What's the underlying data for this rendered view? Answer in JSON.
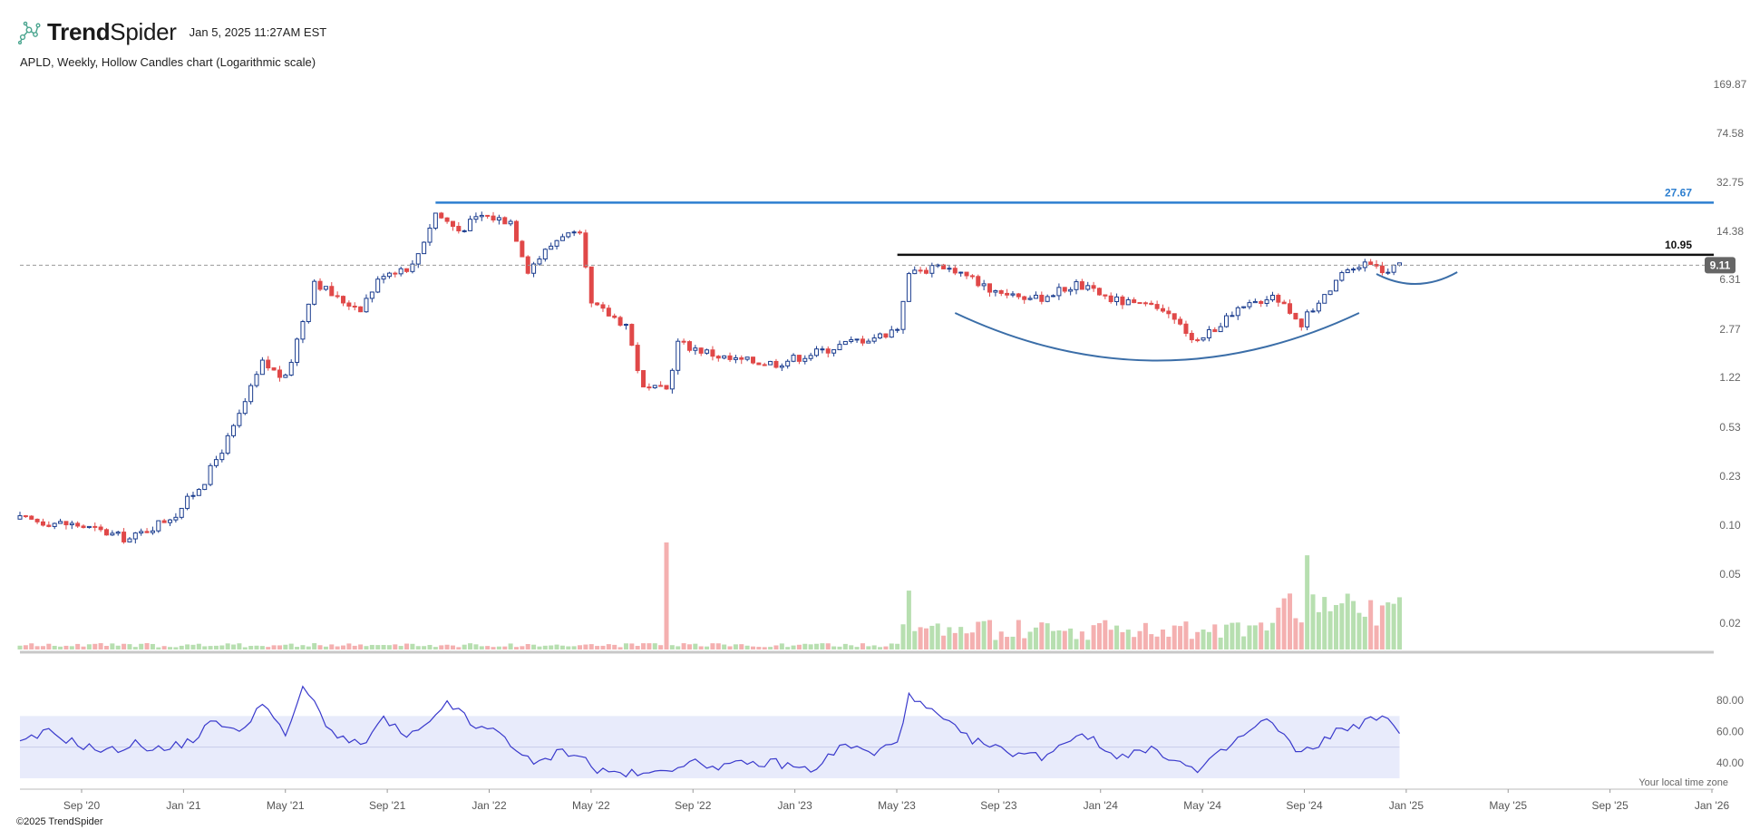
{
  "header": {
    "brand_bold": "Trend",
    "brand_light": "Spider",
    "timestamp": "Jan 5, 2025 11:27AM EST",
    "logo_icon": "trendspider-logo-icon"
  },
  "subtitle": "APLD, Weekly, Hollow Candles chart (Logarithmic scale)",
  "footer": {
    "copyright": "©2025 TrendSpider",
    "timezone_note": "Your local time zone"
  },
  "chart_data": {
    "type": "candlestick",
    "symbol": "APLD",
    "interval": "Weekly",
    "scale": "log",
    "price_axis": {
      "ticks": [
        "169.87",
        "74.58",
        "32.75",
        "14.38",
        "6.31",
        "2.77",
        "1.22",
        "0.53",
        "0.23",
        "0.10",
        "0.05",
        "0.02"
      ],
      "range": [
        0.016,
        230
      ]
    },
    "x_axis": {
      "labels": [
        "Sep '20",
        "Jan '21",
        "May '21",
        "Sep '21",
        "Jan '22",
        "May '22",
        "Sep '22",
        "Jan '23",
        "May '23",
        "Sep '23",
        "Jan '24",
        "May '24",
        "Sep '24",
        "Jan '25",
        "May '25",
        "Sep '25",
        "Jan '26"
      ],
      "range": [
        "2020-06-01",
        "2026-01-15"
      ]
    },
    "current_price": "9.11",
    "horizontal_levels": [
      {
        "label": "27.67",
        "value": 27.67,
        "color": "#2d7fd0",
        "from": "2021-10-18"
      },
      {
        "label": "10.95",
        "value": 10.95,
        "color": "#111111",
        "from": "2023-05-01"
      }
    ],
    "annotations": [
      {
        "type": "cup-arc",
        "from": "2023-07-10",
        "to": "2024-11-11"
      },
      {
        "type": "handle-arc",
        "from": "2024-12-02",
        "to": "2025-03-10"
      }
    ],
    "price_path": [
      [
        "2020-06-01",
        0.1
      ],
      [
        "2020-08-10",
        0.09
      ],
      [
        "2020-10-12",
        0.07
      ],
      [
        "2020-12-07",
        0.11
      ],
      [
        "2021-01-11",
        0.2
      ],
      [
        "2021-02-15",
        0.5
      ],
      [
        "2021-03-22",
        1.6
      ],
      [
        "2021-04-19",
        1.2
      ],
      [
        "2021-05-24",
        7.0
      ],
      [
        "2021-06-21",
        5.0
      ],
      [
        "2021-07-19",
        4.3
      ],
      [
        "2021-08-16",
        8.0
      ],
      [
        "2021-09-20",
        9.0
      ],
      [
        "2021-10-18",
        23.0
      ],
      [
        "2021-11-15",
        17.0
      ],
      [
        "2021-12-13",
        22.0
      ],
      [
        "2022-01-17",
        20.0
      ],
      [
        "2022-02-07",
        8.5
      ],
      [
        "2022-03-21",
        16.0
      ],
      [
        "2022-04-11",
        15.0
      ],
      [
        "2022-04-25",
        4.5
      ],
      [
        "2022-06-06",
        3.2
      ],
      [
        "2022-06-27",
        1.0
      ],
      [
        "2022-07-25",
        1.0
      ],
      [
        "2022-08-08",
        2.3
      ],
      [
        "2022-10-10",
        1.7
      ],
      [
        "2022-12-05",
        1.6
      ],
      [
        "2023-01-30",
        2.0
      ],
      [
        "2023-03-13",
        2.4
      ],
      [
        "2023-04-10",
        2.6
      ],
      [
        "2023-05-01",
        3.0
      ],
      [
        "2023-05-15",
        8.5
      ],
      [
        "2023-07-10",
        8.5
      ],
      [
        "2023-08-21",
        6.0
      ],
      [
        "2023-10-16",
        5.0
      ],
      [
        "2023-12-04",
        6.5
      ],
      [
        "2024-01-15",
        5.0
      ],
      [
        "2024-03-18",
        4.0
      ],
      [
        "2024-04-29",
        2.4
      ],
      [
        "2024-06-17",
        4.0
      ],
      [
        "2024-07-29",
        5.5
      ],
      [
        "2024-09-02",
        3.3
      ],
      [
        "2024-10-14",
        7.0
      ],
      [
        "2024-11-18",
        9.5
      ],
      [
        "2024-12-16",
        8.0
      ],
      [
        "2024-12-30",
        9.1
      ]
    ],
    "volume_last_date": "2024-12-30",
    "rsi": {
      "ticks": [
        "80.00",
        "60.00",
        "40.00"
      ],
      "range": [
        30,
        90
      ],
      "band": [
        30,
        70
      ],
      "mid": 50,
      "color": "#3a3acc",
      "path": [
        [
          "2020-06-01",
          52
        ],
        [
          "2020-07-06",
          60
        ],
        [
          "2020-08-10",
          52
        ],
        [
          "2020-09-14",
          47
        ],
        [
          "2020-10-19",
          52
        ],
        [
          "2020-11-23",
          48
        ],
        [
          "2020-12-28",
          55
        ],
        [
          "2021-01-25",
          68
        ],
        [
          "2021-02-22",
          58
        ],
        [
          "2021-03-22",
          80
        ],
        [
          "2021-04-19",
          56
        ],
        [
          "2021-05-10",
          90
        ],
        [
          "2021-06-14",
          60
        ],
        [
          "2021-07-19",
          50
        ],
        [
          "2021-08-16",
          68
        ],
        [
          "2021-09-13",
          56
        ],
        [
          "2021-10-11",
          64
        ],
        [
          "2021-11-01",
          80
        ],
        [
          "2021-12-06",
          62
        ],
        [
          "2022-01-03",
          60
        ],
        [
          "2022-02-14",
          38
        ],
        [
          "2022-03-21",
          48
        ],
        [
          "2022-04-11",
          45
        ],
        [
          "2022-05-02",
          35
        ],
        [
          "2022-06-06",
          33
        ],
        [
          "2022-07-04",
          32
        ],
        [
          "2022-08-15",
          40
        ],
        [
          "2022-10-03",
          38
        ],
        [
          "2022-12-05",
          40
        ],
        [
          "2023-01-16",
          35
        ],
        [
          "2023-02-27",
          52
        ],
        [
          "2023-04-03",
          45
        ],
        [
          "2023-05-01",
          55
        ],
        [
          "2023-05-15",
          82
        ],
        [
          "2023-06-19",
          70
        ],
        [
          "2023-07-24",
          56
        ],
        [
          "2023-09-04",
          48
        ],
        [
          "2023-10-23",
          44
        ],
        [
          "2023-12-11",
          60
        ],
        [
          "2024-01-15",
          45
        ],
        [
          "2024-03-11",
          48
        ],
        [
          "2024-04-29",
          34
        ],
        [
          "2024-06-17",
          55
        ],
        [
          "2024-07-22",
          68
        ],
        [
          "2024-09-02",
          45
        ],
        [
          "2024-10-14",
          60
        ],
        [
          "2024-11-18",
          66
        ],
        [
          "2024-12-09",
          70
        ],
        [
          "2024-12-30",
          58
        ]
      ]
    }
  }
}
